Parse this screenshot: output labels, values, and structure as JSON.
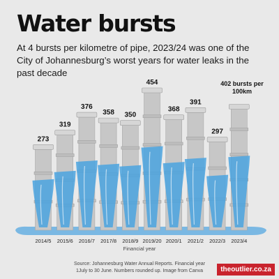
{
  "header": {
    "title": "Water bursts",
    "subtitle": "At 4 bursts per kilometre of pipe, 2023/24 was one of the City of Johannesburg’s worst years for water leaks in the past decade"
  },
  "annotation": {
    "line1": "402 bursts per",
    "line2": "100km"
  },
  "footer": {
    "source_line1": "Source: Johannesburg Water Annual Reports. Financial year",
    "source_line2": "1July to 30 June. Numbers rounded up. Image from Canva",
    "brand": "theoutlier.co.za"
  },
  "colors": {
    "background": "#e9e9e9",
    "pipe": "#c7c7c7",
    "water": "#4aa3df",
    "brand": "#c9232d"
  },
  "chart_data": {
    "type": "bar",
    "categories": [
      "2014/5",
      "2015/6",
      "2016/7",
      "2017/8",
      "2018/9",
      "2019/20",
      "2020/1",
      "2021/2",
      "2022/3",
      "2023/4"
    ],
    "values": [
      273,
      319,
      376,
      358,
      350,
      454,
      368,
      391,
      297,
      402
    ],
    "labels": [
      "273",
      "319",
      "376",
      "358",
      "350",
      "454",
      "368",
      "391",
      "297",
      ""
    ],
    "xlabel": "Financial year",
    "ylabel": "",
    "grid": false
  }
}
